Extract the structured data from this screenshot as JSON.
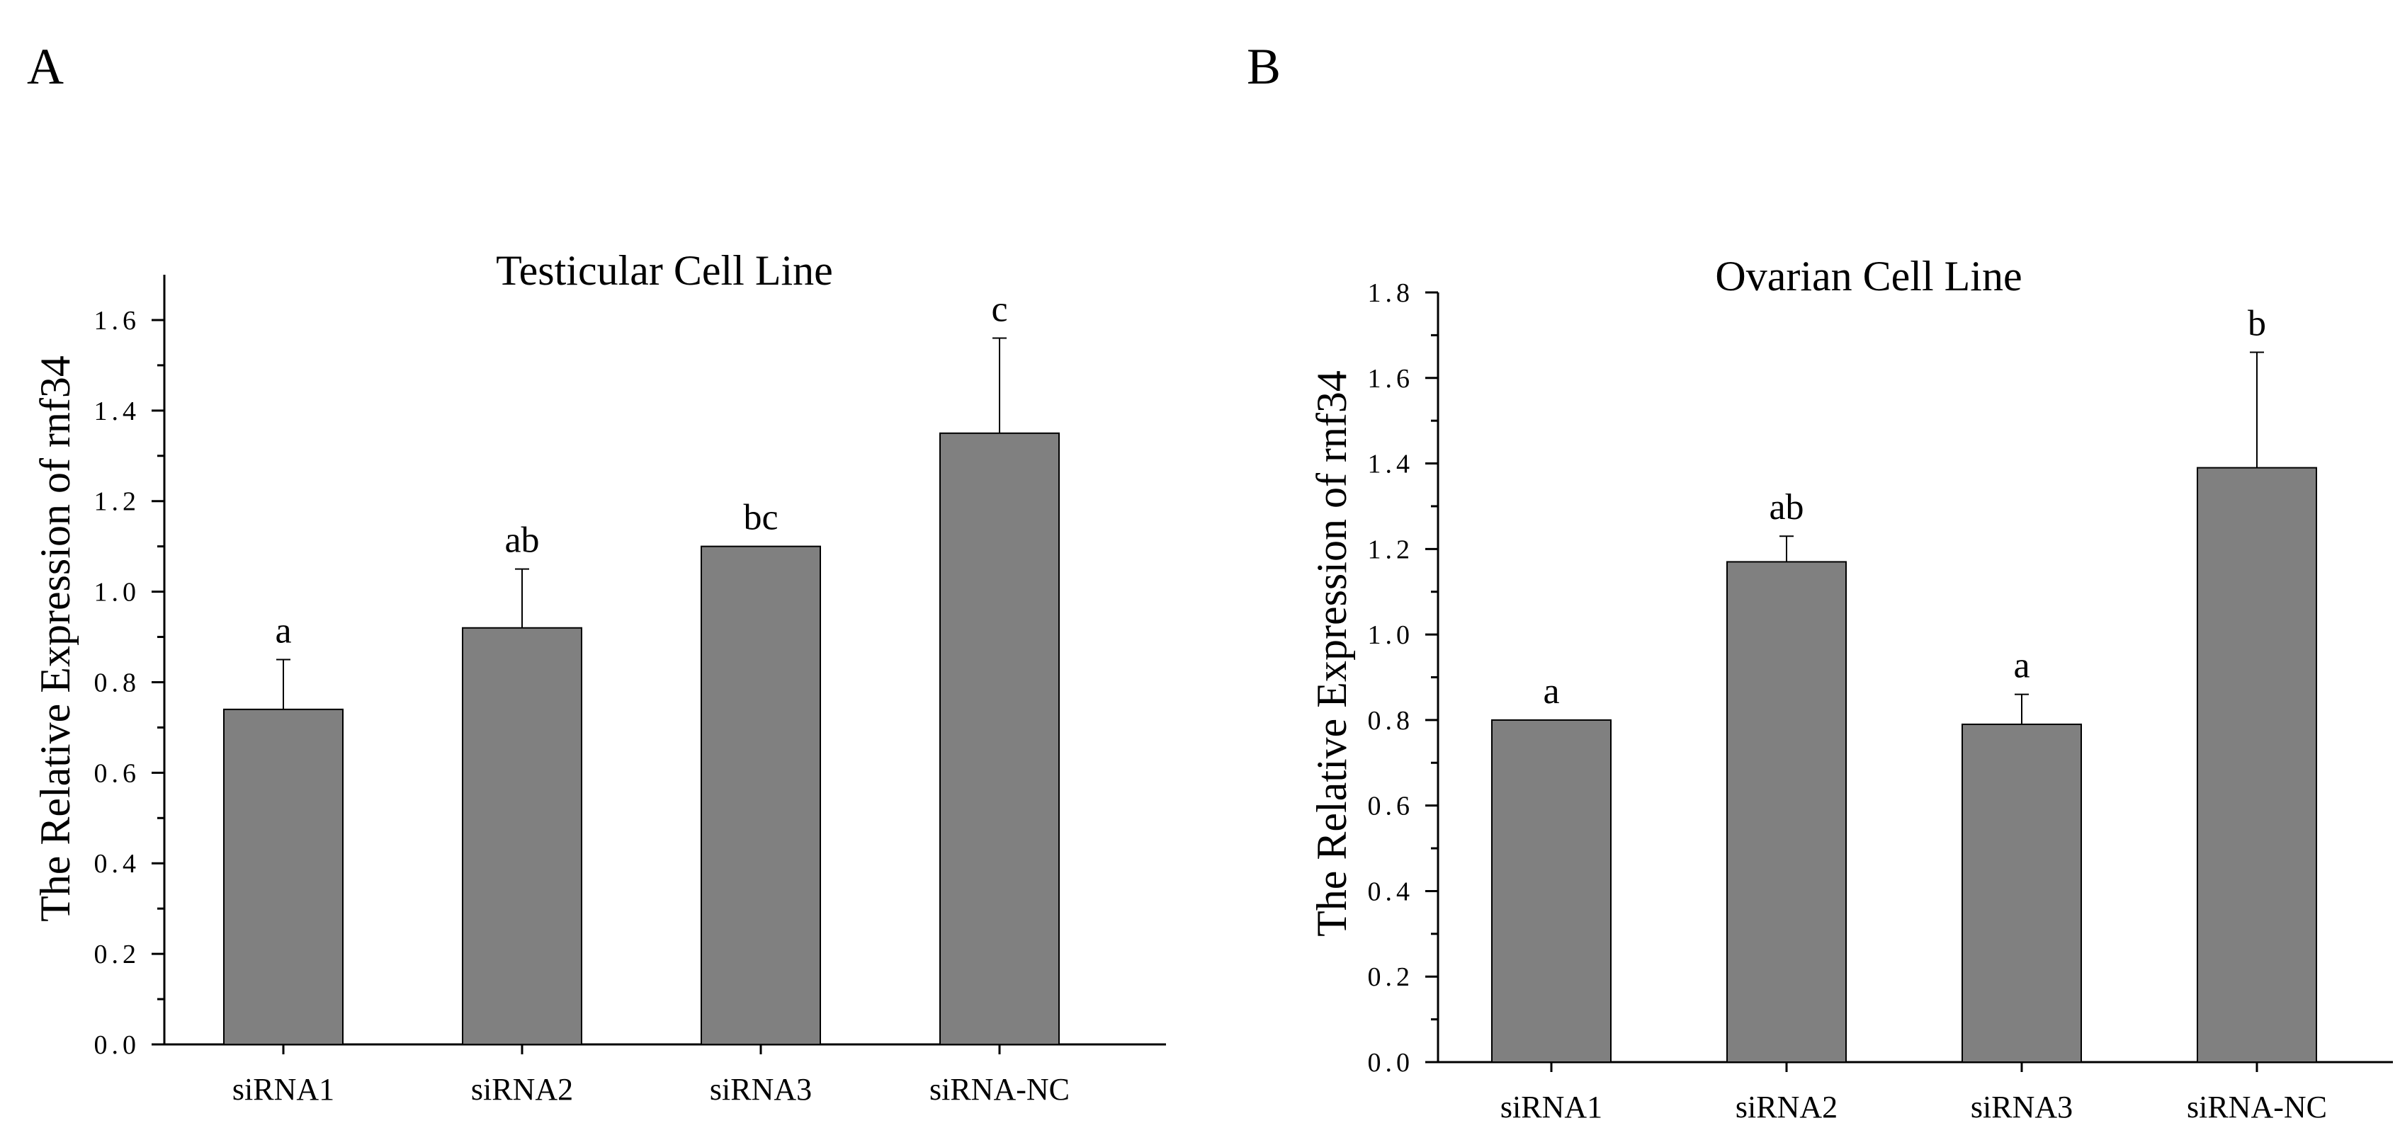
{
  "chart_data": [
    {
      "panel": "A",
      "type": "bar",
      "title": "Testicular Cell Line",
      "xlabel": "",
      "ylabel": "The Relative Expression of rnf34",
      "ylim": [
        0,
        1.7
      ],
      "yticks": [
        "0.0",
        "0.2",
        "0.4",
        "0.6",
        "0.8",
        "1.0",
        "1.2",
        "1.4",
        "1.6"
      ],
      "categories": [
        "siRNA1",
        "siRNA2",
        "siRNA3",
        "siRNA-NC"
      ],
      "values": [
        0.74,
        0.92,
        1.1,
        1.35
      ],
      "error_upper": [
        0.85,
        1.05,
        null,
        1.56
      ],
      "significance": [
        "a",
        "ab",
        "bc",
        "c"
      ],
      "color": "#808080"
    },
    {
      "panel": "B",
      "type": "bar",
      "title": "Ovarian Cell Line",
      "xlabel": "",
      "ylabel": "The Relative Expression of rnf34",
      "ylim": [
        0,
        1.8
      ],
      "yticks": [
        "0.0",
        "0.2",
        "0.4",
        "0.6",
        "0.8",
        "1.0",
        "1.2",
        "1.4",
        "1.6",
        "1.8"
      ],
      "categories": [
        "siRNA1",
        "siRNA2",
        "siRNA3",
        "siRNA-NC"
      ],
      "values": [
        0.8,
        1.17,
        0.79,
        1.39
      ],
      "error_upper": [
        null,
        1.23,
        0.86,
        1.66
      ],
      "significance": [
        "a",
        "ab",
        "a",
        "b"
      ],
      "color": "#808080"
    }
  ]
}
